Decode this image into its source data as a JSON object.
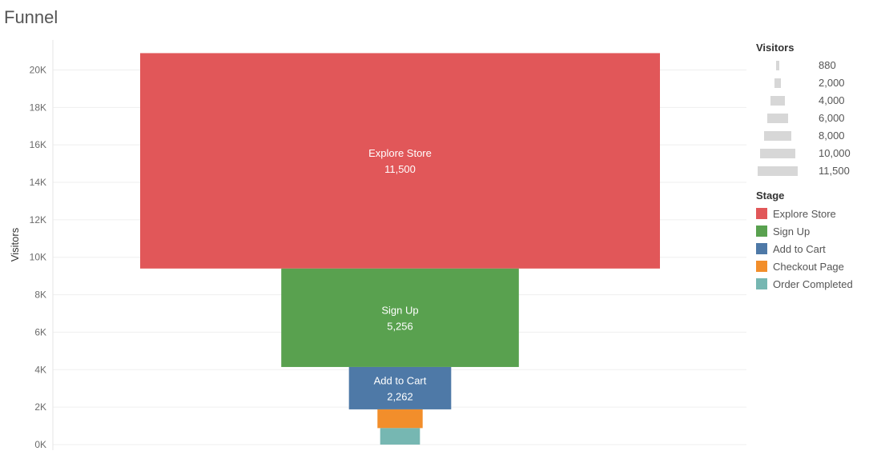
{
  "title": "Funnel",
  "chart_data": {
    "type": "bar",
    "title": "Funnel",
    "ylabel": "Visitors",
    "ylim": [
      0,
      21000
    ],
    "yticks": [
      0,
      2000,
      4000,
      6000,
      8000,
      10000,
      12000,
      14000,
      16000,
      18000,
      20000
    ],
    "ytick_labels": [
      "0K",
      "2K",
      "4K",
      "6K",
      "8K",
      "10K",
      "12K",
      "14K",
      "16K",
      "18K",
      "20K"
    ],
    "grid": true,
    "stacked": true,
    "categories": [
      "Explore Store",
      "Sign Up",
      "Add to Cart",
      "Checkout Page",
      "Order Completed"
    ],
    "values": [
      11500,
      5256,
      2262,
      1000,
      880
    ],
    "value_labels": [
      "11,500",
      "5,256",
      "2,262",
      "",
      ""
    ],
    "colors": [
      "#e15759",
      "#59a14f",
      "#4e79a7",
      "#f28e2b",
      "#76b7b2"
    ]
  },
  "legend_visitors": {
    "title": "Visitors",
    "entries": [
      {
        "label": "880",
        "value": 880
      },
      {
        "label": "2,000",
        "value": 2000
      },
      {
        "label": "4,000",
        "value": 4000
      },
      {
        "label": "6,000",
        "value": 6000
      },
      {
        "label": "8,000",
        "value": 8000
      },
      {
        "label": "10,000",
        "value": 10000
      },
      {
        "label": "11,500",
        "value": 11500
      }
    ]
  },
  "legend_stage": {
    "title": "Stage",
    "entries": [
      {
        "label": "Explore Store",
        "color": "#e15759"
      },
      {
        "label": "Sign Up",
        "color": "#59a14f"
      },
      {
        "label": "Add to Cart",
        "color": "#4e79a7"
      },
      {
        "label": "Checkout Page",
        "color": "#f28e2b"
      },
      {
        "label": "Order Completed",
        "color": "#76b7b2"
      }
    ]
  }
}
